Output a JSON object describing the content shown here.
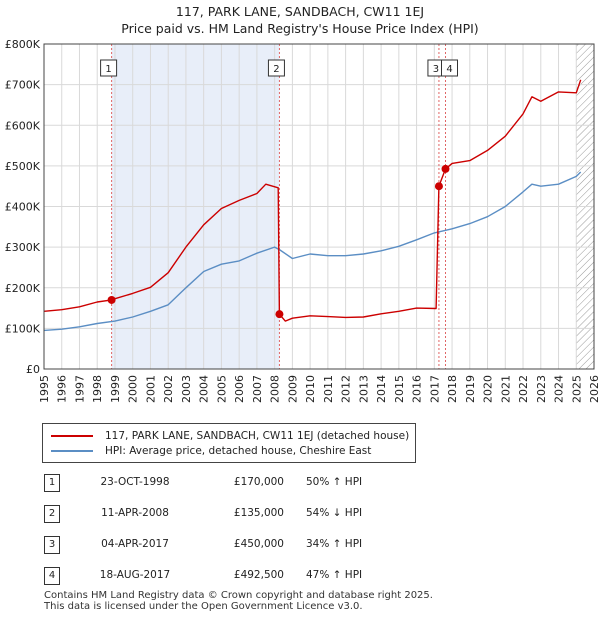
{
  "chart_data": {
    "type": "line",
    "title": "117, PARK LANE, SANDBACH, CW11 1EJ",
    "subtitle": "Price paid vs. HM Land Registry's House Price Index (HPI)",
    "xlim": [
      1995,
      2026
    ],
    "ylim": [
      0,
      800000
    ],
    "x_ticks": [
      "1995",
      "1996",
      "1997",
      "1998",
      "1999",
      "2000",
      "2001",
      "2002",
      "2003",
      "2004",
      "2005",
      "2006",
      "2007",
      "2008",
      "2009",
      "2010",
      "2011",
      "2012",
      "2013",
      "2014",
      "2015",
      "2016",
      "2017",
      "2018",
      "2019",
      "2020",
      "2021",
      "2022",
      "2023",
      "2024",
      "2025",
      "2026"
    ],
    "y_ticks": [
      {
        "value": 0,
        "label": "£0"
      },
      {
        "value": 100000,
        "label": "£100K"
      },
      {
        "value": 200000,
        "label": "£200K"
      },
      {
        "value": 300000,
        "label": "£300K"
      },
      {
        "value": 400000,
        "label": "£400K"
      },
      {
        "value": 500000,
        "label": "£500K"
      },
      {
        "value": 600000,
        "label": "£600K"
      },
      {
        "value": 700000,
        "label": "£700K"
      },
      {
        "value": 800000,
        "label": "£800K"
      }
    ],
    "grid": true,
    "colors": {
      "property": "#cc0000",
      "hpi": "#5b8ec4",
      "shade": "#e8eef9",
      "forecast_hatch": "#999999",
      "marker_line": "#e06666"
    },
    "series": [
      {
        "name": "117, PARK LANE, SANDBACH, CW11 1EJ (detached house)",
        "color": "#cc0000",
        "x": [
          1995,
          1996,
          1997,
          1998,
          1998.81,
          1999,
          2000,
          2001,
          2002,
          2003,
          2004,
          2005,
          2006,
          2007,
          2007.5,
          2008.2,
          2008.27,
          2008.6,
          2009,
          2010,
          2011,
          2012,
          2013,
          2014,
          2015,
          2016,
          2017.1,
          2017.26,
          2017.63,
          2018,
          2019,
          2020,
          2021,
          2022,
          2022.5,
          2023,
          2024,
          2025,
          2025.25
        ],
        "y": [
          142000,
          146000,
          153000,
          165000,
          170000,
          173000,
          186000,
          201000,
          237000,
          300000,
          355000,
          395000,
          415000,
          432000,
          455000,
          446000,
          135000,
          118000,
          125000,
          131000,
          129000,
          127000,
          128000,
          136000,
          142000,
          150000,
          149000,
          450000,
          492500,
          506000,
          513000,
          538000,
          573000,
          628000,
          670000,
          659000,
          682000,
          680000,
          712000
        ]
      },
      {
        "name": "HPI: Average price, detached house, Cheshire East",
        "color": "#5b8ec4",
        "x": [
          1995,
          1996,
          1997,
          1998,
          1999,
          2000,
          2001,
          2002,
          2003,
          2004,
          2005,
          2006,
          2007,
          2008,
          2008.3,
          2009,
          2010,
          2011,
          2012,
          2013,
          2014,
          2015,
          2016,
          2017,
          2018,
          2019,
          2020,
          2021,
          2022,
          2022.5,
          2023,
          2024,
          2025,
          2025.25
        ],
        "y": [
          95000,
          98000,
          104000,
          112000,
          118000,
          128000,
          142000,
          158000,
          200000,
          240000,
          258000,
          266000,
          285000,
          300000,
          293000,
          272000,
          283000,
          279000,
          279000,
          283000,
          291000,
          302000,
          318000,
          335000,
          345000,
          358000,
          375000,
          400000,
          436000,
          455000,
          450000,
          455000,
          474000,
          485000
        ]
      }
    ],
    "sale_markers": [
      {
        "label": "1",
        "x": 1998.81,
        "y": 170000
      },
      {
        "label": "2",
        "x": 2008.27,
        "y": 135000
      },
      {
        "label": "3",
        "x": 2017.26,
        "y": 450000
      },
      {
        "label": "4",
        "x": 2017.63,
        "y": 492500
      }
    ],
    "shaded_range": [
      1998.81,
      2008.27
    ],
    "forecast_from": 2025.0
  },
  "legend": {
    "property_label": "117, PARK LANE, SANDBACH, CW11 1EJ (detached house)",
    "hpi_label": "HPI: Average price, detached house, Cheshire East"
  },
  "sales_table": [
    {
      "num": "1",
      "date": "23-OCT-1998",
      "price": "£170,000",
      "hpi": "50% ↑ HPI"
    },
    {
      "num": "2",
      "date": "11-APR-2008",
      "price": "£135,000",
      "hpi": "54% ↓ HPI"
    },
    {
      "num": "3",
      "date": "04-APR-2017",
      "price": "£450,000",
      "hpi": "34% ↑ HPI"
    },
    {
      "num": "4",
      "date": "18-AUG-2017",
      "price": "£492,500",
      "hpi": "47% ↑ HPI"
    }
  ],
  "footer": {
    "line1": "Contains HM Land Registry data © Crown copyright and database right 2025.",
    "line2": "This data is licensed under the Open Government Licence v3.0."
  }
}
